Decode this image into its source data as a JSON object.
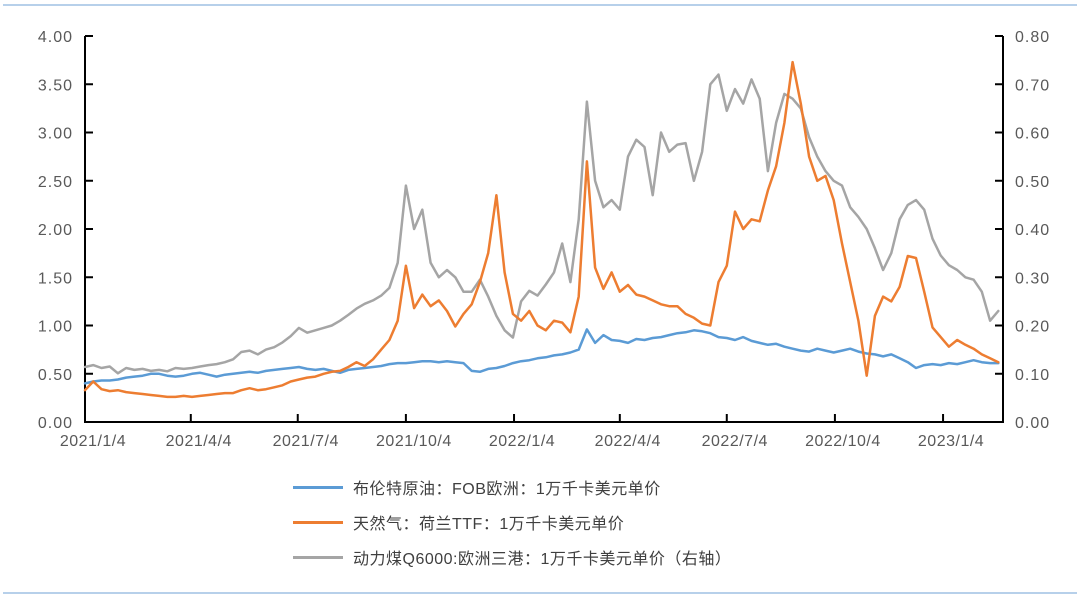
{
  "page": {
    "background": "#ffffff",
    "border_line_color": "#b7d0ea"
  },
  "chart_data": {
    "type": "line",
    "title": "",
    "legend_position": "bottom",
    "grid": false,
    "axis_color": "#000000",
    "tick_label_color": "#595959",
    "x_axis": {
      "tick_labels": [
        "2021/1/4",
        "2021/4/4",
        "2021/7/4",
        "2021/10/4",
        "2022/1/4",
        "2022/4/4",
        "2022/7/4",
        "2022/10/4",
        "2023/1/4"
      ],
      "tick_days": [
        0,
        90,
        181,
        273,
        365,
        455,
        546,
        638,
        730
      ],
      "total_days": 781
    },
    "y_left": {
      "min": 0,
      "max": 4,
      "step": 0.5,
      "ticks": [
        "0.00",
        "0.50",
        "1.00",
        "1.50",
        "2.00",
        "2.50",
        "3.00",
        "3.50",
        "4.00"
      ]
    },
    "y_right": {
      "min": 0,
      "max": 0.8,
      "step": 0.1,
      "ticks": [
        "0.00",
        "0.10",
        "0.20",
        "0.30",
        "0.40",
        "0.50",
        "0.60",
        "0.70",
        "0.80"
      ]
    },
    "series": [
      {
        "name": "布伦特原油：FOB欧洲：1万千卡美元单价",
        "color": "#5B9BD5",
        "axis": "left",
        "sample_interval_days": 7,
        "values": [
          0.4,
          0.42,
          0.43,
          0.43,
          0.44,
          0.46,
          0.47,
          0.48,
          0.5,
          0.5,
          0.48,
          0.47,
          0.48,
          0.5,
          0.51,
          0.49,
          0.47,
          0.49,
          0.5,
          0.51,
          0.52,
          0.51,
          0.53,
          0.54,
          0.55,
          0.56,
          0.57,
          0.55,
          0.54,
          0.55,
          0.53,
          0.51,
          0.54,
          0.55,
          0.56,
          0.57,
          0.58,
          0.6,
          0.61,
          0.61,
          0.62,
          0.63,
          0.63,
          0.62,
          0.63,
          0.62,
          0.61,
          0.53,
          0.52,
          0.55,
          0.56,
          0.58,
          0.61,
          0.63,
          0.64,
          0.66,
          0.67,
          0.69,
          0.7,
          0.72,
          0.75,
          0.96,
          0.82,
          0.9,
          0.85,
          0.84,
          0.82,
          0.86,
          0.85,
          0.87,
          0.88,
          0.9,
          0.92,
          0.93,
          0.95,
          0.94,
          0.92,
          0.88,
          0.87,
          0.85,
          0.88,
          0.84,
          0.82,
          0.8,
          0.81,
          0.78,
          0.76,
          0.74,
          0.73,
          0.76,
          0.74,
          0.72,
          0.74,
          0.76,
          0.73,
          0.71,
          0.7,
          0.68,
          0.7,
          0.66,
          0.62,
          0.56,
          0.59,
          0.6,
          0.59,
          0.61,
          0.6,
          0.62,
          0.64,
          0.62,
          0.61,
          0.61
        ]
      },
      {
        "name": "天然气：荷兰TTF：1万千卡美元单价",
        "color": "#ED7D31",
        "axis": "left",
        "sample_interval_days": 7,
        "values": [
          0.33,
          0.42,
          0.34,
          0.32,
          0.33,
          0.31,
          0.3,
          0.29,
          0.28,
          0.27,
          0.26,
          0.26,
          0.27,
          0.26,
          0.27,
          0.28,
          0.29,
          0.3,
          0.3,
          0.33,
          0.35,
          0.33,
          0.34,
          0.36,
          0.38,
          0.42,
          0.44,
          0.46,
          0.47,
          0.5,
          0.52,
          0.53,
          0.57,
          0.62,
          0.58,
          0.65,
          0.75,
          0.85,
          1.05,
          1.62,
          1.18,
          1.32,
          1.2,
          1.26,
          1.15,
          0.99,
          1.12,
          1.22,
          1.45,
          1.75,
          2.35,
          1.55,
          1.12,
          1.05,
          1.15,
          1.0,
          0.95,
          1.05,
          1.03,
          0.93,
          1.3,
          2.7,
          1.6,
          1.38,
          1.55,
          1.35,
          1.42,
          1.32,
          1.3,
          1.26,
          1.22,
          1.2,
          1.2,
          1.12,
          1.08,
          1.02,
          1.0,
          1.45,
          1.62,
          2.18,
          2.0,
          2.1,
          2.08,
          2.4,
          2.65,
          3.1,
          3.73,
          3.3,
          2.75,
          2.5,
          2.55,
          2.3,
          1.85,
          1.45,
          1.05,
          0.48,
          1.1,
          1.3,
          1.25,
          1.4,
          1.72,
          1.7,
          1.35,
          0.98,
          0.88,
          0.78,
          0.85,
          0.8,
          0.76,
          0.7,
          0.66,
          0.62
        ]
      },
      {
        "name": "动力煤Q6000:欧洲三港：1万千卡美元单价（右轴）",
        "color": "#A5A5A5",
        "axis": "right",
        "sample_interval_days": 7,
        "values": [
          0.114,
          0.118,
          0.112,
          0.115,
          0.101,
          0.112,
          0.108,
          0.11,
          0.106,
          0.108,
          0.105,
          0.112,
          0.11,
          0.112,
          0.115,
          0.118,
          0.12,
          0.124,
          0.13,
          0.145,
          0.148,
          0.14,
          0.15,
          0.155,
          0.165,
          0.178,
          0.195,
          0.185,
          0.19,
          0.195,
          0.2,
          0.21,
          0.222,
          0.235,
          0.245,
          0.252,
          0.262,
          0.278,
          0.33,
          0.49,
          0.4,
          0.44,
          0.33,
          0.3,
          0.315,
          0.3,
          0.27,
          0.27,
          0.295,
          0.26,
          0.22,
          0.19,
          0.175,
          0.25,
          0.272,
          0.262,
          0.285,
          0.31,
          0.37,
          0.29,
          0.42,
          0.664,
          0.5,
          0.445,
          0.46,
          0.44,
          0.55,
          0.585,
          0.57,
          0.47,
          0.6,
          0.56,
          0.575,
          0.578,
          0.5,
          0.56,
          0.7,
          0.72,
          0.645,
          0.69,
          0.66,
          0.71,
          0.67,
          0.52,
          0.62,
          0.68,
          0.67,
          0.65,
          0.59,
          0.55,
          0.52,
          0.5,
          0.49,
          0.445,
          0.425,
          0.4,
          0.36,
          0.315,
          0.35,
          0.42,
          0.45,
          0.46,
          0.44,
          0.38,
          0.345,
          0.325,
          0.315,
          0.3,
          0.295,
          0.27,
          0.21,
          0.23
        ]
      }
    ]
  }
}
